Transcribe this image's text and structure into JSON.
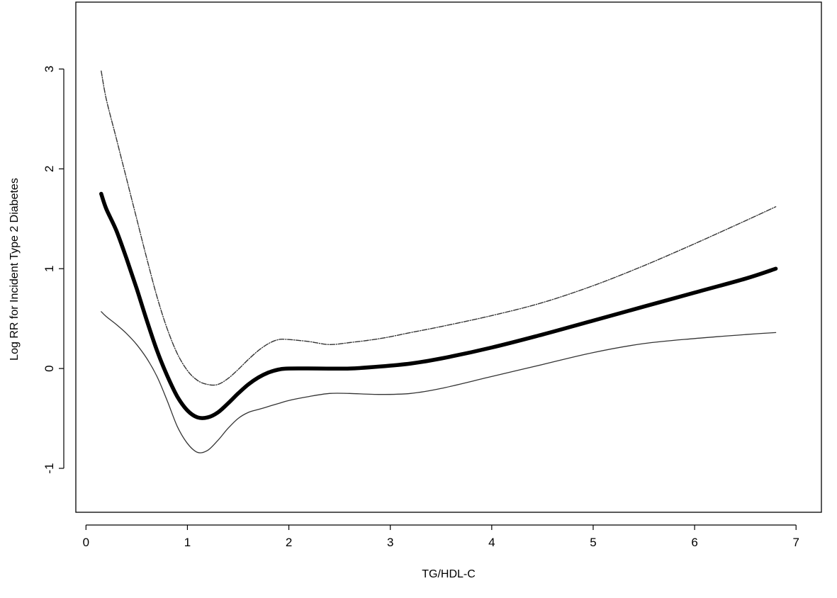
{
  "chart_data": {
    "type": "line",
    "xlabel": "TG/HDL-C",
    "ylabel": "Log RR for Incident Type 2 Diabetes",
    "xlim": [
      -0.1,
      7.25
    ],
    "ylim": [
      -1.44,
      3.67
    ],
    "x_ticks": [
      0,
      1,
      2,
      3,
      4,
      5,
      6,
      7
    ],
    "y_ticks": [
      -1,
      0,
      1,
      2,
      3
    ],
    "x_tick_labels": [
      "0",
      "1",
      "2",
      "3",
      "4",
      "5",
      "6",
      "7"
    ],
    "y_tick_labels": [
      "-1",
      "0",
      "1",
      "2",
      "3"
    ],
    "grid": false,
    "box": true,
    "series": [
      {
        "role": "estimate",
        "color": "#000000",
        "style": "thick",
        "points": [
          [
            0.15,
            1.75
          ],
          [
            0.2,
            1.6
          ],
          [
            0.3,
            1.38
          ],
          [
            0.4,
            1.1
          ],
          [
            0.5,
            0.8
          ],
          [
            0.6,
            0.48
          ],
          [
            0.7,
            0.18
          ],
          [
            0.8,
            -0.07
          ],
          [
            0.9,
            -0.28
          ],
          [
            1.0,
            -0.42
          ],
          [
            1.1,
            -0.49
          ],
          [
            1.2,
            -0.49
          ],
          [
            1.3,
            -0.44
          ],
          [
            1.4,
            -0.35
          ],
          [
            1.5,
            -0.25
          ],
          [
            1.6,
            -0.16
          ],
          [
            1.7,
            -0.09
          ],
          [
            1.8,
            -0.04
          ],
          [
            1.9,
            -0.01
          ],
          [
            2.0,
            0.0
          ],
          [
            2.3,
            0.0
          ],
          [
            2.6,
            0.0
          ],
          [
            2.9,
            0.02
          ],
          [
            3.2,
            0.05
          ],
          [
            3.5,
            0.1
          ],
          [
            4.0,
            0.21
          ],
          [
            4.5,
            0.34
          ],
          [
            5.0,
            0.48
          ],
          [
            5.5,
            0.62
          ],
          [
            6.0,
            0.76
          ],
          [
            6.5,
            0.9
          ],
          [
            6.8,
            1.0
          ]
        ]
      },
      {
        "role": "upper-ci",
        "color": "#333333",
        "style": "dashed",
        "points": [
          [
            0.15,
            2.98
          ],
          [
            0.2,
            2.7
          ],
          [
            0.3,
            2.3
          ],
          [
            0.4,
            1.9
          ],
          [
            0.5,
            1.5
          ],
          [
            0.6,
            1.1
          ],
          [
            0.7,
            0.72
          ],
          [
            0.8,
            0.4
          ],
          [
            0.9,
            0.15
          ],
          [
            1.0,
            -0.02
          ],
          [
            1.1,
            -0.12
          ],
          [
            1.2,
            -0.16
          ],
          [
            1.3,
            -0.16
          ],
          [
            1.4,
            -0.1
          ],
          [
            1.5,
            -0.01
          ],
          [
            1.6,
            0.09
          ],
          [
            1.7,
            0.18
          ],
          [
            1.8,
            0.25
          ],
          [
            1.9,
            0.29
          ],
          [
            2.0,
            0.29
          ],
          [
            2.2,
            0.27
          ],
          [
            2.4,
            0.24
          ],
          [
            2.6,
            0.26
          ],
          [
            2.9,
            0.3
          ],
          [
            3.2,
            0.36
          ],
          [
            3.5,
            0.42
          ],
          [
            4.0,
            0.53
          ],
          [
            4.5,
            0.66
          ],
          [
            5.0,
            0.83
          ],
          [
            5.5,
            1.03
          ],
          [
            6.0,
            1.25
          ],
          [
            6.5,
            1.48
          ],
          [
            6.8,
            1.62
          ]
        ]
      },
      {
        "role": "lower-ci",
        "color": "#333333",
        "style": "solid-thin",
        "points": [
          [
            0.15,
            0.57
          ],
          [
            0.2,
            0.52
          ],
          [
            0.3,
            0.44
          ],
          [
            0.4,
            0.35
          ],
          [
            0.5,
            0.24
          ],
          [
            0.6,
            0.1
          ],
          [
            0.7,
            -0.08
          ],
          [
            0.8,
            -0.32
          ],
          [
            0.9,
            -0.58
          ],
          [
            1.0,
            -0.75
          ],
          [
            1.1,
            -0.84
          ],
          [
            1.2,
            -0.82
          ],
          [
            1.3,
            -0.72
          ],
          [
            1.4,
            -0.6
          ],
          [
            1.5,
            -0.5
          ],
          [
            1.6,
            -0.44
          ],
          [
            1.7,
            -0.41
          ],
          [
            1.8,
            -0.38
          ],
          [
            1.9,
            -0.35
          ],
          [
            2.0,
            -0.32
          ],
          [
            2.2,
            -0.28
          ],
          [
            2.4,
            -0.25
          ],
          [
            2.6,
            -0.25
          ],
          [
            2.9,
            -0.26
          ],
          [
            3.2,
            -0.25
          ],
          [
            3.5,
            -0.2
          ],
          [
            4.0,
            -0.08
          ],
          [
            4.5,
            0.04
          ],
          [
            5.0,
            0.16
          ],
          [
            5.5,
            0.25
          ],
          [
            6.0,
            0.3
          ],
          [
            6.5,
            0.34
          ],
          [
            6.8,
            0.36
          ]
        ]
      }
    ]
  }
}
